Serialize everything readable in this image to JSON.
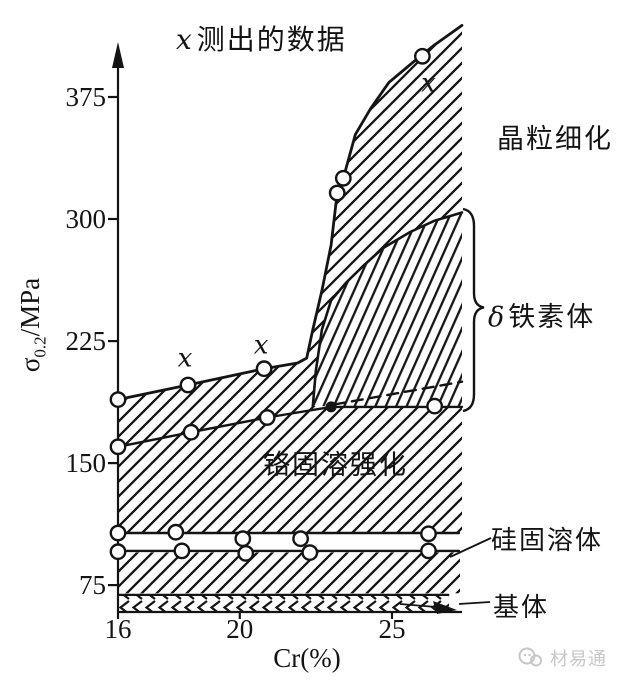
{
  "labels": {
    "title_marker": "x",
    "title_rest": "测出的数据",
    "ylabel_sigma": "σ",
    "ylabel_sub": "0.2",
    "ylabel_unit": "/MPa",
    "xlabel": "Cr(%)",
    "grain_refinement": "晶粒细化",
    "delta_symbol": "δ",
    "delta_rest": "铁素体",
    "cr_strengthening": "铬固溶强化",
    "si_solid_solution": "硅固溶体",
    "matrix": "基体"
  },
  "watermark": {
    "text": "材易通"
  },
  "chart_data": {
    "type": "line",
    "title": "x测出的数据",
    "xlabel": "Cr(%)",
    "ylabel": "σ0.2/MPa",
    "xlim": [
      16,
      27.3
    ],
    "ylim": [
      55,
      420
    ],
    "x_ticks": [
      16,
      20,
      25
    ],
    "y_ticks": [
      75,
      150,
      225,
      300,
      375
    ],
    "grid": false,
    "legend": "none",
    "series": [
      {
        "name": "yield-strength-measured",
        "style": "solid",
        "marker": "circle",
        "marker_points": [
          [
            16,
            189
          ],
          [
            18.3,
            198
          ],
          [
            20.8,
            208
          ],
          [
            23.2,
            316
          ],
          [
            23.4,
            325
          ],
          [
            26,
            400
          ]
        ],
        "path": [
          [
            16,
            189
          ],
          [
            18.3,
            198
          ],
          [
            20.8,
            208
          ],
          [
            21.9,
            211.5
          ],
          [
            22.2,
            214.5
          ],
          [
            22.4,
            232
          ],
          [
            22.7,
            256
          ],
          [
            23,
            284
          ],
          [
            23.2,
            316
          ],
          [
            23.4,
            325
          ],
          [
            23.8,
            352
          ],
          [
            24.3,
            368
          ],
          [
            24.9,
            384
          ],
          [
            25.7,
            396.5
          ],
          [
            26.4,
            407
          ],
          [
            27.3,
            419
          ]
        ]
      },
      {
        "name": "cr-solid-solution-boundary",
        "style": "solid",
        "marker": "circle",
        "marker_points": [
          [
            16,
            160
          ],
          [
            18.4,
            169
          ],
          [
            20.9,
            178
          ],
          [
            26.4,
            185
          ]
        ],
        "filled_marker_points": [
          [
            23,
            184.5
          ]
        ],
        "path": [
          [
            16,
            160
          ],
          [
            18.4,
            169
          ],
          [
            20.9,
            178
          ],
          [
            23,
            184.5
          ],
          [
            27.3,
            184.5
          ]
        ]
      },
      {
        "name": "extrapolated-boundary",
        "style": "dashed",
        "path": [
          [
            23.1,
            186
          ],
          [
            27.3,
            200
          ]
        ]
      },
      {
        "name": "delta-ferrite-boundary",
        "style": "solid",
        "path": [
          [
            22.4,
            185
          ],
          [
            22.5,
            207
          ],
          [
            22.7,
            232
          ],
          [
            23,
            250
          ],
          [
            23.5,
            261
          ],
          [
            24.1,
            272
          ],
          [
            24.7,
            282
          ],
          [
            25.6,
            292
          ],
          [
            26.4,
            299
          ],
          [
            27.3,
            304
          ]
        ]
      },
      {
        "name": "si-solid-solution-upper",
        "style": "solid",
        "marker": "circle",
        "marker_points": [
          [
            16,
            107
          ],
          [
            17.9,
            107.5
          ],
          [
            20.1,
            103.5
          ],
          [
            22,
            103.5
          ],
          [
            26.2,
            106.5
          ]
        ],
        "path": [
          [
            16,
            107
          ],
          [
            27.2,
            107
          ]
        ]
      },
      {
        "name": "si-solid-solution-lower",
        "style": "solid",
        "marker": "circle",
        "marker_points": [
          [
            16,
            95.5
          ],
          [
            18.1,
            96
          ],
          [
            20.2,
            94.5
          ],
          [
            22.3,
            95
          ],
          [
            26.2,
            96
          ]
        ],
        "path": [
          [
            16,
            96
          ],
          [
            27.2,
            96
          ]
        ]
      },
      {
        "name": "matrix-level",
        "style": "solid",
        "path": [
          [
            16,
            69
          ],
          [
            26.85,
            69
          ]
        ]
      }
    ],
    "point_annotations": [
      {
        "text": "x",
        "x": 18.2,
        "y": 215
      },
      {
        "text": "x",
        "x": 20.7,
        "y": 223
      },
      {
        "text": "x",
        "x": 26.2,
        "y": 384
      }
    ],
    "regions": [
      {
        "name": "grain-refinement",
        "label": "晶粒细化"
      },
      {
        "name": "delta-ferrite",
        "label": "δ铁素体"
      },
      {
        "name": "cr-solid-solution-strengthening",
        "label": "铬固溶强化"
      },
      {
        "name": "si-solid-solution",
        "label": "硅固溶体"
      },
      {
        "name": "matrix",
        "label": "基体"
      }
    ]
  }
}
